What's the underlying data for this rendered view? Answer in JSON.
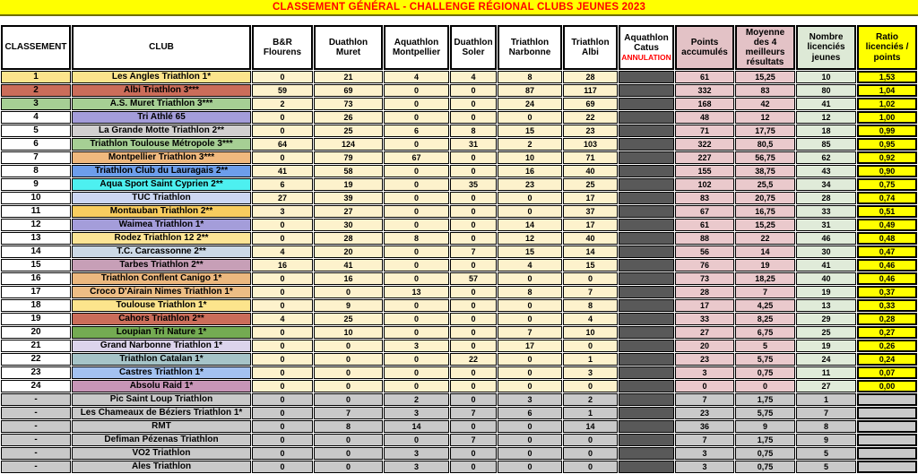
{
  "title": "CLASSEMENT GÉNÉRAL - CHALLENGE RÉGIONAL CLUBS JEUNES 2023",
  "table": {
    "columns": [
      "CLASSEMENT",
      "CLUB",
      "B&R Flourens",
      "Duathlon Muret",
      "Aquathlon Montpellier",
      "Duathlon Soler",
      "Triathlon Narbonne",
      "Triathlon Albi",
      "Aquathlon Catus",
      "Points accumulés",
      "Moyenne des 4 meilleurs résultats",
      "Nombre licenciés jeunes",
      "Ratio licenciés / points"
    ],
    "annulation_label": "ANNULATION",
    "rows": [
      {
        "rank": "1",
        "club": "Les Angles Triathlon 1*",
        "rank_color": "#fce48c",
        "club_color": "#fce48c",
        "results": [
          "0",
          "21",
          "4",
          "4",
          "8",
          "28"
        ],
        "points": "61",
        "moyenne": "15,25",
        "licencies": "10",
        "ratio": "1,53",
        "unranked": false
      },
      {
        "rank": "2",
        "club": "Albi Triathlon 3***",
        "rank_color": "#cb6d5a",
        "club_color": "#cb6d5a",
        "results": [
          "59",
          "69",
          "0",
          "0",
          "87",
          "117"
        ],
        "points": "332",
        "moyenne": "83",
        "licencies": "80",
        "ratio": "1,04",
        "unranked": false
      },
      {
        "rank": "3",
        "club": "A.S. Muret Triathlon 3***",
        "rank_color": "#a6cf94",
        "club_color": "#a6cf94",
        "results": [
          "2",
          "73",
          "0",
          "0",
          "24",
          "69"
        ],
        "points": "168",
        "moyenne": "42",
        "licencies": "41",
        "ratio": "1,02",
        "unranked": false
      },
      {
        "rank": "4",
        "club": "Tri Athlé 65",
        "rank_color": "#ffffff",
        "club_color": "#a49dda",
        "results": [
          "0",
          "26",
          "0",
          "0",
          "0",
          "22"
        ],
        "points": "48",
        "moyenne": "12",
        "licencies": "12",
        "ratio": "1,00",
        "unranked": false
      },
      {
        "rank": "5",
        "club": "La Grande Motte Triathlon 2**",
        "rank_color": "#ffffff",
        "club_color": "#d2d0d0",
        "results": [
          "0",
          "25",
          "6",
          "8",
          "15",
          "23"
        ],
        "points": "71",
        "moyenne": "17,75",
        "licencies": "18",
        "ratio": "0,99",
        "unranked": false
      },
      {
        "rank": "6",
        "club": "Triathlon Toulouse Métropole 3***",
        "rank_color": "#ffffff",
        "club_color": "#a6cf94",
        "results": [
          "64",
          "124",
          "0",
          "31",
          "2",
          "103"
        ],
        "points": "322",
        "moyenne": "80,5",
        "licencies": "85",
        "ratio": "0,95",
        "unranked": false
      },
      {
        "rank": "7",
        "club": "Montpellier Triathlon 3***",
        "rank_color": "#ffffff",
        "club_color": "#f0b97e",
        "results": [
          "0",
          "79",
          "67",
          "0",
          "10",
          "71"
        ],
        "points": "227",
        "moyenne": "56,75",
        "licencies": "62",
        "ratio": "0,92",
        "unranked": false
      },
      {
        "rank": "8",
        "club": "Triathlon Club du Lauragais 2**",
        "rank_color": "#ffffff",
        "club_color": "#6d9eeb",
        "results": [
          "41",
          "58",
          "0",
          "0",
          "16",
          "40"
        ],
        "points": "155",
        "moyenne": "38,75",
        "licencies": "43",
        "ratio": "0,90",
        "unranked": false
      },
      {
        "rank": "9",
        "club": "Aqua Sport Saint Cyprien 2**",
        "rank_color": "#ffffff",
        "club_color": "#4df0f0",
        "results": [
          "6",
          "19",
          "0",
          "35",
          "23",
          "25"
        ],
        "points": "102",
        "moyenne": "25,5",
        "licencies": "34",
        "ratio": "0,75",
        "unranked": false
      },
      {
        "rank": "10",
        "club": "TUC Triathlon",
        "rank_color": "#ffffff",
        "club_color": "#ccd6f2",
        "results": [
          "27",
          "39",
          "0",
          "0",
          "0",
          "17"
        ],
        "points": "83",
        "moyenne": "20,75",
        "licencies": "28",
        "ratio": "0,74",
        "unranked": false
      },
      {
        "rank": "11",
        "club": "Montauban Triathlon 2**",
        "rank_color": "#ffffff",
        "club_color": "#f8cd5f",
        "results": [
          "3",
          "27",
          "0",
          "0",
          "0",
          "37"
        ],
        "points": "67",
        "moyenne": "16,75",
        "licencies": "33",
        "ratio": "0,51",
        "unranked": false
      },
      {
        "rank": "12",
        "club": "Waimea Triathlon 1*",
        "rank_color": "#ffffff",
        "club_color": "#a49dda",
        "results": [
          "0",
          "30",
          "0",
          "0",
          "14",
          "17"
        ],
        "points": "61",
        "moyenne": "15,25",
        "licencies": "31",
        "ratio": "0,49",
        "unranked": false
      },
      {
        "rank": "13",
        "club": "Rodez Triathlon 12 2**",
        "rank_color": "#ffffff",
        "club_color": "#fce495",
        "results": [
          "0",
          "28",
          "8",
          "0",
          "12",
          "40"
        ],
        "points": "88",
        "moyenne": "22",
        "licencies": "46",
        "ratio": "0,48",
        "unranked": false
      },
      {
        "rank": "14",
        "club": "T.C. Carcassonne 2**",
        "rank_color": "#ffffff",
        "club_color": "#ccd9e6",
        "results": [
          "4",
          "20",
          "0",
          "7",
          "15",
          "14"
        ],
        "points": "56",
        "moyenne": "14",
        "licencies": "30",
        "ratio": "0,47",
        "unranked": false
      },
      {
        "rank": "15",
        "club": "Tarbes Triathlon 2**",
        "rank_color": "#ffffff",
        "club_color": "#c79fb7",
        "results": [
          "16",
          "41",
          "0",
          "0",
          "4",
          "15"
        ],
        "points": "76",
        "moyenne": "19",
        "licencies": "41",
        "ratio": "0,46",
        "unranked": false
      },
      {
        "rank": "16",
        "club": "Triathlon Conflent Canigo 1*",
        "rank_color": "#ffffff",
        "club_color": "#ecb87f",
        "results": [
          "0",
          "16",
          "0",
          "57",
          "0",
          "0"
        ],
        "points": "73",
        "moyenne": "18,25",
        "licencies": "40",
        "ratio": "0,46",
        "unranked": false
      },
      {
        "rank": "17",
        "club": "Croco D'Airain Nimes Triathlon 1*",
        "rank_color": "#ffffff",
        "club_color": "#edbd85",
        "results": [
          "0",
          "0",
          "13",
          "0",
          "8",
          "7"
        ],
        "points": "28",
        "moyenne": "7",
        "licencies": "19",
        "ratio": "0,37",
        "unranked": false
      },
      {
        "rank": "18",
        "club": "Toulouse Triathlon 1*",
        "rank_color": "#ffffff",
        "club_color": "#fce48c",
        "results": [
          "0",
          "9",
          "0",
          "0",
          "0",
          "8"
        ],
        "points": "17",
        "moyenne": "4,25",
        "licencies": "13",
        "ratio": "0,33",
        "unranked": false
      },
      {
        "rank": "19",
        "club": "Cahors Triathlon 2**",
        "rank_color": "#ffffff",
        "club_color": "#cb6d5a",
        "results": [
          "4",
          "25",
          "0",
          "0",
          "0",
          "4"
        ],
        "points": "33",
        "moyenne": "8,25",
        "licencies": "29",
        "ratio": "0,28",
        "unranked": false
      },
      {
        "rank": "20",
        "club": "Loupian Tri Nature 1*",
        "rank_color": "#ffffff",
        "club_color": "#74ab52",
        "results": [
          "0",
          "10",
          "0",
          "0",
          "7",
          "10"
        ],
        "points": "27",
        "moyenne": "6,75",
        "licencies": "25",
        "ratio": "0,27",
        "unranked": false
      },
      {
        "rank": "21",
        "club": "Grand Narbonne Triathlon 1*",
        "rank_color": "#ffffff",
        "club_color": "#dcd4ec",
        "results": [
          "0",
          "0",
          "3",
          "0",
          "17",
          "0"
        ],
        "points": "20",
        "moyenne": "5",
        "licencies": "19",
        "ratio": "0,26",
        "unranked": false
      },
      {
        "rank": "22",
        "club": "Triathlon Catalan 1*",
        "rank_color": "#ffffff",
        "club_color": "#a6c4c8",
        "results": [
          "0",
          "0",
          "0",
          "22",
          "0",
          "1"
        ],
        "points": "23",
        "moyenne": "5,75",
        "licencies": "24",
        "ratio": "0,24",
        "unranked": false
      },
      {
        "rank": "23",
        "club": "Castres Triathlon 1*",
        "rank_color": "#ffffff",
        "club_color": "#a3c1f0",
        "results": [
          "0",
          "0",
          "0",
          "0",
          "0",
          "3"
        ],
        "points": "3",
        "moyenne": "0,75",
        "licencies": "11",
        "ratio": "0,07",
        "unranked": false
      },
      {
        "rank": "24",
        "club": "Absolu Raid 1*",
        "rank_color": "#ffffff",
        "club_color": "#c795b7",
        "results": [
          "0",
          "0",
          "0",
          "0",
          "0",
          "0"
        ],
        "points": "0",
        "moyenne": "0",
        "licencies": "27",
        "ratio": "0,00",
        "unranked": false
      },
      {
        "rank": "-",
        "club": "Pic Saint Loup Triathlon",
        "rank_color": "#c9c9c9",
        "club_color": "#c9c9c9",
        "results": [
          "0",
          "0",
          "2",
          "0",
          "3",
          "2"
        ],
        "points": "7",
        "moyenne": "1,75",
        "licencies": "1",
        "ratio": "",
        "unranked": true
      },
      {
        "rank": "-",
        "club": "Les Chameaux de Béziers Triathlon 1*",
        "rank_color": "#c9c9c9",
        "club_color": "#c9c9c9",
        "results": [
          "0",
          "7",
          "3",
          "7",
          "6",
          "1"
        ],
        "points": "23",
        "moyenne": "5,75",
        "licencies": "7",
        "ratio": "",
        "unranked": true
      },
      {
        "rank": "-",
        "club": "RMT",
        "rank_color": "#c9c9c9",
        "club_color": "#c9c9c9",
        "results": [
          "0",
          "8",
          "14",
          "0",
          "0",
          "14"
        ],
        "points": "36",
        "moyenne": "9",
        "licencies": "8",
        "ratio": "",
        "unranked": true
      },
      {
        "rank": "-",
        "club": "Defiman Pézenas Triathlon",
        "rank_color": "#c9c9c9",
        "club_color": "#c9c9c9",
        "results": [
          "0",
          "0",
          "0",
          "7",
          "0",
          "0"
        ],
        "points": "7",
        "moyenne": "1,75",
        "licencies": "9",
        "ratio": "",
        "unranked": true
      },
      {
        "rank": "-",
        "club": "VO2 Triathlon",
        "rank_color": "#c9c9c9",
        "club_color": "#c9c9c9",
        "results": [
          "0",
          "0",
          "3",
          "0",
          "0",
          "0"
        ],
        "points": "3",
        "moyenne": "0,75",
        "licencies": "5",
        "ratio": "",
        "unranked": true
      },
      {
        "rank": "-",
        "club": "Ales Triathlon",
        "rank_color": "#c9c9c9",
        "club_color": "#c9c9c9",
        "results": [
          "0",
          "0",
          "3",
          "0",
          "0",
          "0"
        ],
        "points": "3",
        "moyenne": "0,75",
        "licencies": "5",
        "ratio": "",
        "unranked": true
      }
    ]
  },
  "colors": {
    "title_bg": "#ffff00",
    "title_text": "#ff0000",
    "annulation_text": "#ff0000",
    "race_cell_bg": "#fdf2cc",
    "points_header_bg": "#e3c2c6",
    "points_cell_bg": "#eac9cc",
    "licencies_header_bg": "#dde9d6",
    "licencies_cell_bg": "#e0ebd9",
    "ratio_bg": "#ffff00",
    "catus_bg": "#595959",
    "unranked_bg": "#c9c9c9"
  }
}
